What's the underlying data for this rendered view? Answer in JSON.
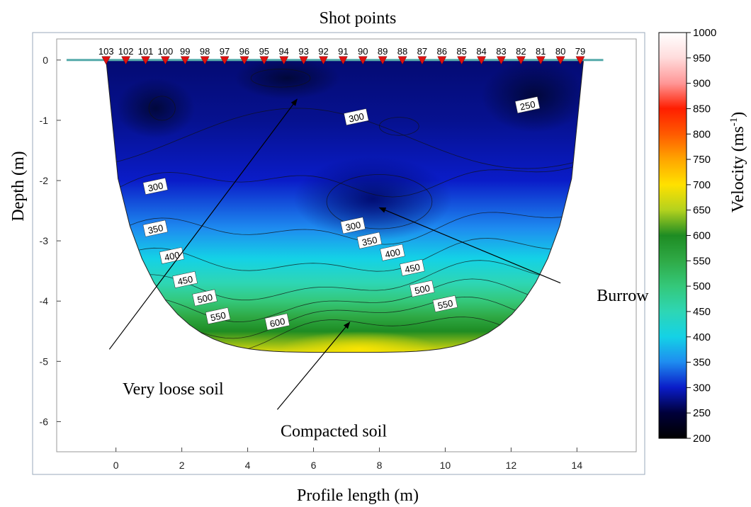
{
  "chart_data": {
    "type": "heatmap",
    "title": "Shot points",
    "xlabel": "Profile length (m)",
    "ylabel": "Depth (m)",
    "colorbar_label": "Velocity (ms",
    "colorbar_label_sup": "-1",
    "colorbar_label_end": ")",
    "xlim": [
      -1.8,
      15.8
    ],
    "ylim": [
      -6.5,
      0.35
    ],
    "x_ticks": [
      0,
      2,
      4,
      6,
      8,
      10,
      12,
      14
    ],
    "y_ticks": [
      0,
      -1,
      -2,
      -3,
      -4,
      -5,
      -6
    ],
    "colorbar_range": [
      200,
      1000
    ],
    "colorbar_ticks": [
      200,
      250,
      300,
      350,
      400,
      450,
      500,
      550,
      600,
      650,
      700,
      750,
      800,
      850,
      900,
      950,
      1000
    ],
    "colorscale": [
      {
        "v": 200,
        "color": "#000000"
      },
      {
        "v": 250,
        "color": "#00003a"
      },
      {
        "v": 300,
        "color": "#0a1cc8"
      },
      {
        "v": 350,
        "color": "#1e8cf0"
      },
      {
        "v": 400,
        "color": "#14d2e6"
      },
      {
        "v": 450,
        "color": "#2ed6b4"
      },
      {
        "v": 500,
        "color": "#34c87a"
      },
      {
        "v": 550,
        "color": "#2faa46"
      },
      {
        "v": 600,
        "color": "#1e8c23"
      },
      {
        "v": 650,
        "color": "#b4d21e"
      },
      {
        "v": 700,
        "color": "#ffe100"
      },
      {
        "v": 750,
        "color": "#ffa500"
      },
      {
        "v": 800,
        "color": "#ff5a00"
      },
      {
        "v": 850,
        "color": "#ff1e00"
      },
      {
        "v": 900,
        "color": "#ff9696"
      },
      {
        "v": 950,
        "color": "#ffdcdc"
      },
      {
        "v": 1000,
        "color": "#ffffff"
      }
    ],
    "shot_points": [
      {
        "label": "103",
        "x": -0.3
      },
      {
        "label": "102",
        "x": 0.3
      },
      {
        "label": "101",
        "x": 0.9
      },
      {
        "label": "100",
        "x": 1.5
      },
      {
        "label": "99",
        "x": 2.1
      },
      {
        "label": "98",
        "x": 2.7
      },
      {
        "label": "97",
        "x": 3.3
      },
      {
        "label": "96",
        "x": 3.9
      },
      {
        "label": "95",
        "x": 4.5
      },
      {
        "label": "94",
        "x": 5.1
      },
      {
        "label": "93",
        "x": 5.7
      },
      {
        "label": "92",
        "x": 6.3
      },
      {
        "label": "91",
        "x": 6.9
      },
      {
        "label": "90",
        "x": 7.5
      },
      {
        "label": "89",
        "x": 8.1
      },
      {
        "label": "88",
        "x": 8.7
      },
      {
        "label": "87",
        "x": 9.3
      },
      {
        "label": "86",
        "x": 9.9
      },
      {
        "label": "85",
        "x": 10.5
      },
      {
        "label": "84",
        "x": 11.1
      },
      {
        "label": "83",
        "x": 11.7
      },
      {
        "label": "82",
        "x": 12.3
      },
      {
        "label": "81",
        "x": 12.9
      },
      {
        "label": "80",
        "x": 13.5
      },
      {
        "label": "79",
        "x": 14.1
      }
    ],
    "velocity_profile": [
      {
        "depth": 0.0,
        "v": 270
      },
      {
        "depth": -1.0,
        "v": 280
      },
      {
        "depth": -2.0,
        "v": 300
      },
      {
        "depth": -2.8,
        "v": 350
      },
      {
        "depth": -3.3,
        "v": 400
      },
      {
        "depth": -3.7,
        "v": 450
      },
      {
        "depth": -4.0,
        "v": 500
      },
      {
        "depth": -4.25,
        "v": 550
      },
      {
        "depth": -4.5,
        "v": 600
      },
      {
        "depth": -4.85,
        "v": 680
      }
    ],
    "contour_labels": [
      {
        "text": "300",
        "x": 7.3,
        "y": -0.95
      },
      {
        "text": "250",
        "x": 12.5,
        "y": -0.75
      },
      {
        "text": "300",
        "x": 1.2,
        "y": -2.1
      },
      {
        "text": "350",
        "x": 1.2,
        "y": -2.8
      },
      {
        "text": "400",
        "x": 1.7,
        "y": -3.25
      },
      {
        "text": "450",
        "x": 2.1,
        "y": -3.65
      },
      {
        "text": "500",
        "x": 2.7,
        "y": -3.95
      },
      {
        "text": "550",
        "x": 3.1,
        "y": -4.25
      },
      {
        "text": "600",
        "x": 4.9,
        "y": -4.35
      },
      {
        "text": "300",
        "x": 7.2,
        "y": -2.75
      },
      {
        "text": "350",
        "x": 7.7,
        "y": -3.0
      },
      {
        "text": "400",
        "x": 8.4,
        "y": -3.2
      },
      {
        "text": "450",
        "x": 9.0,
        "y": -3.45
      },
      {
        "text": "500",
        "x": 9.3,
        "y": -3.8
      },
      {
        "text": "550",
        "x": 10.0,
        "y": -4.05
      }
    ],
    "annotations": [
      {
        "text": "Very loose soil",
        "label_x": 0.2,
        "label_y": -5.55,
        "tail_x": -0.2,
        "tail_y": -4.8,
        "head_x": 5.5,
        "head_y": -0.65
      },
      {
        "text": "Compacted soil",
        "label_x": 5.0,
        "label_y": -6.25,
        "tail_x": 4.9,
        "tail_y": -5.8,
        "head_x": 7.1,
        "head_y": -4.35
      },
      {
        "text": "Burrow",
        "label_x": 14.6,
        "label_y": -4.0,
        "tail_x": 13.5,
        "tail_y": -3.7,
        "head_x": 8.0,
        "head_y": -2.45
      }
    ]
  }
}
